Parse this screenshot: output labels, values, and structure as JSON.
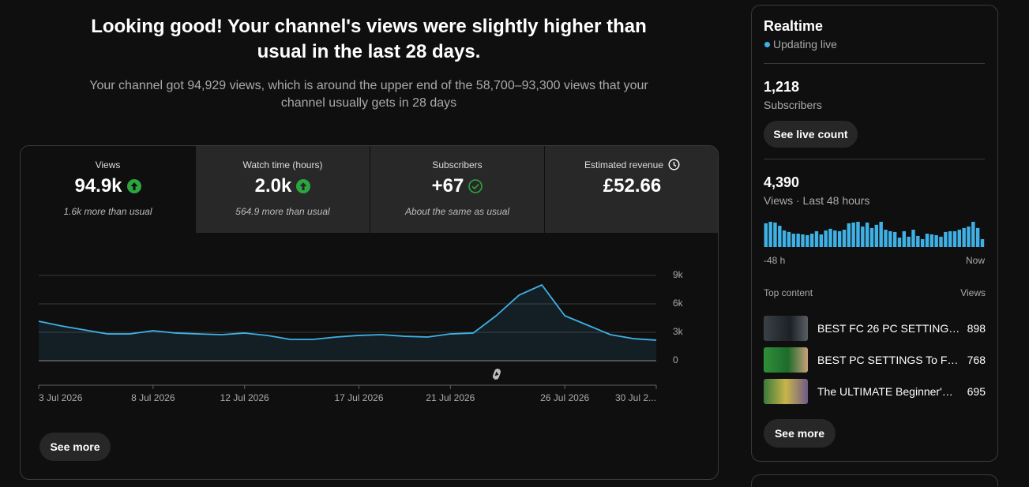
{
  "header": {
    "title": "Looking good! Your channel's views were slightly higher than usual in the last 28 days.",
    "subtitle": "Your channel got 94,929 views, which is around the upper end of the 58,700–93,300 views that your channel usually gets in 28 days"
  },
  "metrics": [
    {
      "label": "Views",
      "value": "94.9k",
      "note": "1.6k more than usual"
    },
    {
      "label": "Watch time (hours)",
      "value": "2.0k",
      "note": "564.9 more than usual"
    },
    {
      "label": "Subscribers",
      "value": "+67",
      "note": "About the same as usual"
    },
    {
      "label": "Estimated revenue",
      "value": "£52.66"
    }
  ],
  "main_card": {
    "see_more": "See more"
  },
  "chart_data": [
    {
      "type": "line",
      "categories": [
        "3 Jul 2026",
        null,
        null,
        null,
        null,
        "8 Jul 2026",
        null,
        null,
        null,
        "12 Jul 2026",
        null,
        null,
        null,
        null,
        "17 Jul 2026",
        null,
        null,
        null,
        "21 Jul 2026",
        null,
        null,
        null,
        null,
        "26 Jul 2026",
        null,
        null,
        null,
        "30 Jul 2..."
      ],
      "values": [
        4170,
        3670,
        3250,
        2830,
        2830,
        3170,
        2920,
        2830,
        2750,
        2920,
        2670,
        2250,
        2250,
        2500,
        2670,
        2750,
        2580,
        2500,
        2830,
        2920,
        4750,
        6920,
        8000,
        4750,
        3750,
        2750,
        2330,
        2170
      ],
      "color": "#3fb1e5",
      "ylim": [
        0,
        9000
      ],
      "yticks": [
        {
          "value": 0,
          "label": "0"
        },
        {
          "value": 3000,
          "label": "3k"
        },
        {
          "value": 6000,
          "label": "6k"
        },
        {
          "value": 9000,
          "label": "9k"
        }
      ],
      "grid": true
    },
    {
      "type": "bar",
      "categories": [
        "-48 h",
        null,
        null,
        null,
        null,
        null,
        null,
        null,
        null,
        null,
        null,
        null,
        null,
        null,
        null,
        null,
        null,
        null,
        null,
        null,
        null,
        null,
        null,
        null,
        null,
        null,
        null,
        null,
        null,
        null,
        null,
        null,
        null,
        null,
        null,
        null,
        null,
        null,
        null,
        null,
        null,
        null,
        null,
        null,
        null,
        null,
        null,
        "Now"
      ],
      "values": [
        126,
        134,
        130,
        113,
        88,
        80,
        71,
        71,
        67,
        63,
        71,
        84,
        67,
        88,
        97,
        88,
        84,
        92,
        126,
        130,
        134,
        109,
        130,
        101,
        118,
        134,
        92,
        84,
        80,
        50,
        84,
        55,
        92,
        59,
        42,
        71,
        67,
        63,
        55,
        80,
        84,
        84,
        92,
        101,
        109,
        134,
        101,
        42
      ],
      "color": "#3fb1e5"
    }
  ],
  "realtime": {
    "title": "Realtime",
    "status": "Updating live",
    "subscribers": "1,218",
    "subscribers_label": "Subscribers",
    "live_button": "See live count",
    "views": "4,390",
    "views_label": "Views · Last 48 hours",
    "top_content_label": "Top content",
    "views_header": "Views",
    "top_content": [
      {
        "title": "BEST FC 26 PC SETTING…",
        "views": 898
      },
      {
        "title": "BEST PC SETTINGS To F…",
        "views": 768
      },
      {
        "title": "The ULTIMATE Beginner'…",
        "views": 695
      }
    ],
    "see_more": "See more"
  }
}
